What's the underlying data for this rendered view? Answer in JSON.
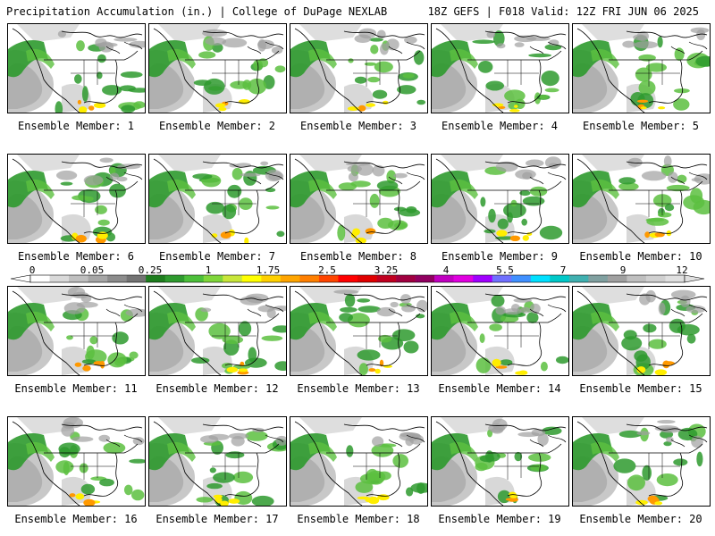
{
  "header": {
    "left": "Precipitation Accumulation (in.) | College of DuPage NEXLAB",
    "right": "18Z GEFS | F018 Valid: 12Z FRI JUN 06 2025"
  },
  "caption_prefix": "Ensemble Member: ",
  "members": [
    1,
    2,
    3,
    4,
    5,
    6,
    7,
    8,
    9,
    10,
    11,
    12,
    13,
    14,
    15,
    16,
    17,
    18,
    19,
    20
  ],
  "colorbar": {
    "labels": [
      "0",
      "0.05",
      "0.25",
      "1",
      "1.75",
      "2.5",
      "3.25",
      "4",
      "5.5",
      "7",
      "9",
      "12"
    ],
    "colors": [
      "#ffffff",
      "#d9d9d9",
      "#bfbfbf",
      "#a6a6a6",
      "#8c8c8c",
      "#737373",
      "#1e7d1e",
      "#2e9a2e",
      "#4cbf3a",
      "#7fd63a",
      "#c8e63a",
      "#ffff00",
      "#ffd000",
      "#ffa500",
      "#ff7f00",
      "#ff4500",
      "#ff0000",
      "#e00000",
      "#c00020",
      "#a00040",
      "#900060",
      "#c000c0",
      "#e000e0",
      "#a000ff",
      "#7070ff",
      "#4090ff",
      "#00e0ff",
      "#00c8c8",
      "#40b0b0",
      "#80a0a0",
      "#a0a0a0",
      "#bfbfbf",
      "#d0d0d0",
      "#e0e0e0"
    ]
  },
  "map_colors": {
    "land": "#ffffff",
    "light_precip": "#c8c8c8",
    "mid_precip": "#a0a0a0",
    "green_low": "#2e9a2e",
    "green_high": "#5cc040",
    "yellow": "#ffee00",
    "orange": "#ff9900",
    "outline": "#000000"
  }
}
